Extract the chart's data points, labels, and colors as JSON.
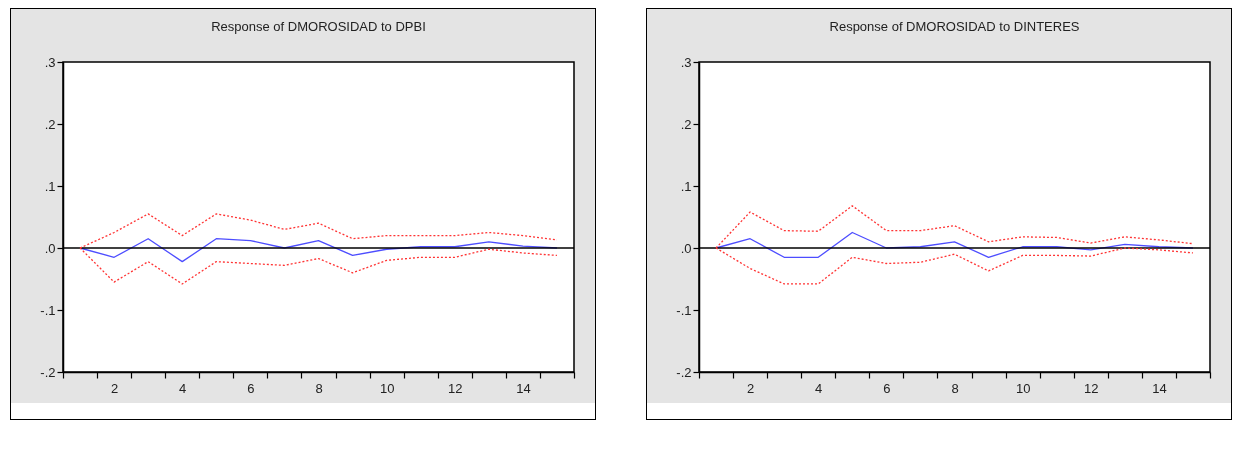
{
  "chart_data": [
    {
      "type": "line",
      "title": "Response of DMOROSIDAD to DPBI",
      "x": [
        1,
        2,
        3,
        4,
        5,
        6,
        7,
        8,
        9,
        10,
        11,
        12,
        13,
        14,
        15
      ],
      "xlim": [
        0.5,
        15.5
      ],
      "xticks": [
        {
          "value": 0.5,
          "label": null
        },
        {
          "value": 1.5,
          "label": null
        },
        2,
        {
          "value": 2.5,
          "label": null
        },
        {
          "value": 3.5,
          "label": null
        },
        4,
        {
          "value": 4.5,
          "label": null
        },
        {
          "value": 5.5,
          "label": null
        },
        6,
        {
          "value": 6.5,
          "label": null
        },
        {
          "value": 7.5,
          "label": null
        },
        8,
        {
          "value": 8.5,
          "label": null
        },
        {
          "value": 9.5,
          "label": null
        },
        10,
        {
          "value": 10.5,
          "label": null
        },
        {
          "value": 11.5,
          "label": null
        },
        12,
        {
          "value": 12.5,
          "label": null
        },
        {
          "value": 13.5,
          "label": null
        },
        14,
        {
          "value": 14.5,
          "label": null
        },
        {
          "value": 15.5,
          "label": null
        }
      ],
      "ylim": [
        -0.2,
        0.3
      ],
      "yticks": [
        {
          "value": -0.2,
          "label": "-.2"
        },
        {
          "value": -0.1,
          "label": "-.1"
        },
        {
          "value": 0,
          "label": ".0"
        },
        {
          "value": 0.1,
          "label": ".1"
        },
        {
          "value": 0.2,
          "label": ".2"
        },
        {
          "value": 0.3,
          "label": ".3"
        }
      ],
      "grid": false,
      "ref_lines": [
        {
          "axis": "y",
          "value": 0,
          "color": "#000000"
        }
      ],
      "series": [
        {
          "color": "#4d4dff",
          "line_style": "solid",
          "values": [
            0,
            -0.015,
            0.015,
            -0.022,
            0.015,
            0.012,
            0.0,
            0.012,
            -0.012,
            -0.002,
            0.002,
            0.002,
            0.01,
            0.003,
            0.0
          ]
        },
        {
          "color": "#ff3333",
          "line_style": "dotted",
          "values": [
            0,
            0.025,
            0.055,
            0.02,
            0.055,
            0.045,
            0.03,
            0.04,
            0.015,
            0.02,
            0.02,
            0.02,
            0.025,
            0.02,
            0.013
          ]
        },
        {
          "color": "#ff3333",
          "line_style": "dotted",
          "values": [
            0,
            -0.055,
            -0.022,
            -0.058,
            -0.022,
            -0.025,
            -0.028,
            -0.017,
            -0.04,
            -0.02,
            -0.015,
            -0.015,
            -0.002,
            -0.008,
            -0.012
          ]
        }
      ]
    },
    {
      "type": "line",
      "title": "Response of DMOROSIDAD to DINTERES",
      "x": [
        1,
        2,
        3,
        4,
        5,
        6,
        7,
        8,
        9,
        10,
        11,
        12,
        13,
        14,
        15
      ],
      "xlim": [
        0.5,
        15.5
      ],
      "xticks": [
        {
          "value": 0.5,
          "label": null
        },
        {
          "value": 1.5,
          "label": null
        },
        2,
        {
          "value": 2.5,
          "label": null
        },
        {
          "value": 3.5,
          "label": null
        },
        4,
        {
          "value": 4.5,
          "label": null
        },
        {
          "value": 5.5,
          "label": null
        },
        6,
        {
          "value": 6.5,
          "label": null
        },
        {
          "value": 7.5,
          "label": null
        },
        8,
        {
          "value": 8.5,
          "label": null
        },
        {
          "value": 9.5,
          "label": null
        },
        10,
        {
          "value": 10.5,
          "label": null
        },
        {
          "value": 11.5,
          "label": null
        },
        12,
        {
          "value": 12.5,
          "label": null
        },
        {
          "value": 13.5,
          "label": null
        },
        14,
        {
          "value": 14.5,
          "label": null
        },
        {
          "value": 15.5,
          "label": null
        }
      ],
      "ylim": [
        -0.2,
        0.3
      ],
      "yticks": [
        {
          "value": -0.2,
          "label": "-.2"
        },
        {
          "value": -0.1,
          "label": "-.1"
        },
        {
          "value": 0,
          "label": ".0"
        },
        {
          "value": 0.1,
          "label": ".1"
        },
        {
          "value": 0.2,
          "label": ".2"
        },
        {
          "value": 0.3,
          "label": ".3"
        }
      ],
      "grid": false,
      "ref_lines": [
        {
          "axis": "y",
          "value": 0,
          "color": "#000000"
        }
      ],
      "series": [
        {
          "color": "#4d4dff",
          "line_style": "solid",
          "values": [
            0,
            0.015,
            -0.015,
            -0.015,
            0.025,
            0.0,
            0.002,
            0.01,
            -0.015,
            0.002,
            0.002,
            -0.003,
            0.006,
            0.002,
            0.0
          ]
        },
        {
          "color": "#ff3333",
          "line_style": "dotted",
          "values": [
            0,
            0.058,
            0.028,
            0.027,
            0.068,
            0.028,
            0.028,
            0.036,
            0.01,
            0.018,
            0.017,
            0.008,
            0.018,
            0.013,
            0.007
          ]
        },
        {
          "color": "#ff3333",
          "line_style": "dotted",
          "values": [
            0,
            -0.033,
            -0.058,
            -0.058,
            -0.015,
            -0.025,
            -0.023,
            -0.01,
            -0.037,
            -0.012,
            -0.012,
            -0.013,
            0.0,
            -0.003,
            -0.008
          ]
        }
      ]
    }
  ]
}
